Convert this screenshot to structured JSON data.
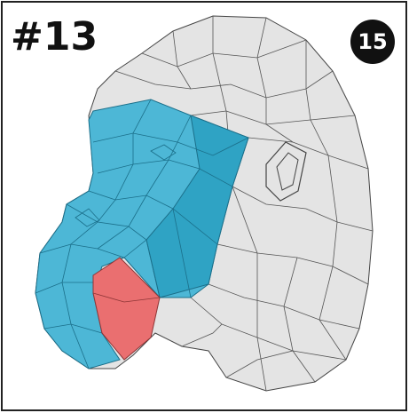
{
  "label": "#13",
  "badge": "15"
}
